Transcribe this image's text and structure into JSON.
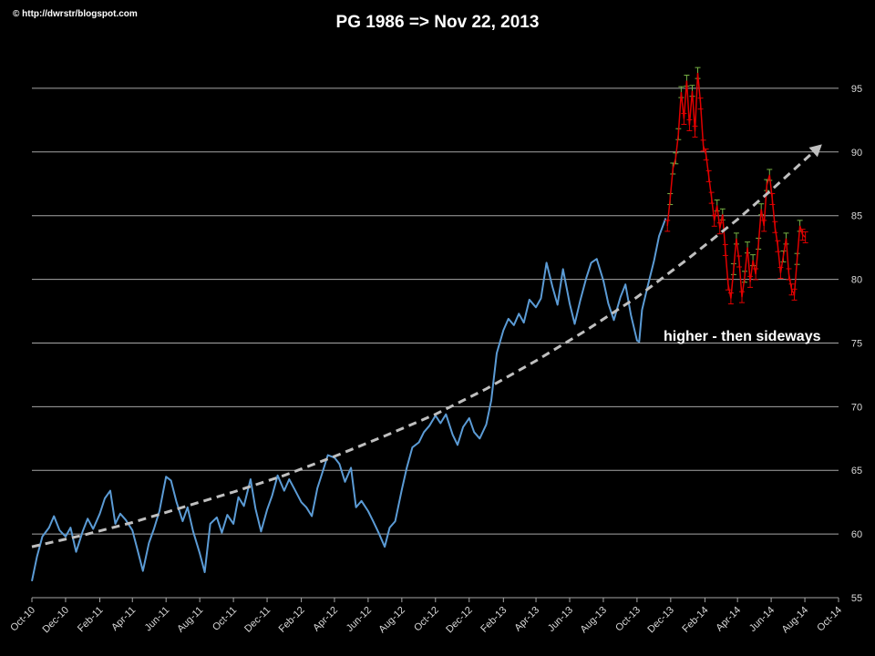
{
  "watermark": "© http://dwrstr/blogspot.com",
  "chart_data": {
    "type": "line",
    "title": "PG 1986 => Nov 22, 2013",
    "annotation": "higher - then sideways",
    "xlabel": "",
    "ylabel": "",
    "ylim": [
      55,
      98.5
    ],
    "yticks": [
      55,
      60,
      65,
      70,
      75,
      80,
      85,
      90,
      95
    ],
    "grid": "horizontal",
    "xlim": [
      "2010-10-01",
      "2014-10-01"
    ],
    "xtick_labels": [
      "Oct-10",
      "Dec-10",
      "Feb-11",
      "Apr-11",
      "Jun-11",
      "Aug-11",
      "Oct-11",
      "Dec-11",
      "Feb-12",
      "Apr-12",
      "Jun-12",
      "Aug-12",
      "Oct-12",
      "Dec-12",
      "Feb-13",
      "Apr-13",
      "Jun-13",
      "Aug-13",
      "Oct-13",
      "Dec-13",
      "Feb-14",
      "Apr-14",
      "Jun-14",
      "Aug-14",
      "Oct-14"
    ],
    "xtick_dates": [
      "2010-10-01",
      "2010-12-01",
      "2011-02-01",
      "2011-04-01",
      "2011-06-01",
      "2011-08-01",
      "2011-10-01",
      "2011-12-01",
      "2012-02-01",
      "2012-04-01",
      "2012-06-01",
      "2012-08-01",
      "2012-10-01",
      "2012-12-01",
      "2013-02-01",
      "2013-04-01",
      "2013-06-01",
      "2013-08-01",
      "2013-10-01",
      "2013-12-01",
      "2014-02-01",
      "2014-04-01",
      "2014-06-01",
      "2014-08-01",
      "2014-10-01"
    ],
    "colors": {
      "price": "#5b9bd5",
      "projection_up": "#77b244",
      "projection_down": "#e00000",
      "trend": "#bfbfbf",
      "grid": "#a6a6a6"
    },
    "series": [
      {
        "style": "line",
        "points": [
          [
            "2010-10-01",
            56.3
          ],
          [
            "2010-10-10",
            58.2
          ],
          [
            "2010-10-20",
            59.8
          ],
          [
            "2010-11-01",
            60.5
          ],
          [
            "2010-11-10",
            61.4
          ],
          [
            "2010-11-20",
            60.3
          ],
          [
            "2010-12-01",
            59.8
          ],
          [
            "2010-12-10",
            60.5
          ],
          [
            "2010-12-20",
            58.6
          ],
          [
            "2011-01-01",
            60.2
          ],
          [
            "2011-01-10",
            61.2
          ],
          [
            "2011-01-20",
            60.4
          ],
          [
            "2011-02-01",
            61.6
          ],
          [
            "2011-02-10",
            62.8
          ],
          [
            "2011-02-20",
            63.4
          ],
          [
            "2011-03-01",
            60.8
          ],
          [
            "2011-03-10",
            61.6
          ],
          [
            "2011-03-20",
            61.1
          ],
          [
            "2011-04-01",
            60.3
          ],
          [
            "2011-04-10",
            58.8
          ],
          [
            "2011-04-20",
            57.1
          ],
          [
            "2011-05-01",
            59.3
          ],
          [
            "2011-05-10",
            60.4
          ],
          [
            "2011-05-20",
            61.8
          ],
          [
            "2011-06-01",
            64.5
          ],
          [
            "2011-06-10",
            64.2
          ],
          [
            "2011-06-20",
            62.5
          ],
          [
            "2011-07-01",
            61.0
          ],
          [
            "2011-07-10",
            62.1
          ],
          [
            "2011-07-20",
            60.2
          ],
          [
            "2011-08-01",
            58.5
          ],
          [
            "2011-08-10",
            57.0
          ],
          [
            "2011-08-20",
            60.8
          ],
          [
            "2011-09-01",
            61.3
          ],
          [
            "2011-09-10",
            60.1
          ],
          [
            "2011-09-20",
            61.5
          ],
          [
            "2011-10-01",
            60.8
          ],
          [
            "2011-10-10",
            62.9
          ],
          [
            "2011-10-20",
            62.2
          ],
          [
            "2011-11-01",
            64.3
          ],
          [
            "2011-11-10",
            62.0
          ],
          [
            "2011-11-20",
            60.2
          ],
          [
            "2011-12-01",
            61.9
          ],
          [
            "2011-12-10",
            63.0
          ],
          [
            "2011-12-20",
            64.6
          ],
          [
            "2012-01-01",
            63.4
          ],
          [
            "2012-01-10",
            64.3
          ],
          [
            "2012-01-20",
            63.5
          ],
          [
            "2012-02-01",
            62.5
          ],
          [
            "2012-02-10",
            62.1
          ],
          [
            "2012-02-20",
            61.4
          ],
          [
            "2012-03-01",
            63.6
          ],
          [
            "2012-03-10",
            64.8
          ],
          [
            "2012-03-20",
            66.2
          ],
          [
            "2012-04-01",
            66.0
          ],
          [
            "2012-04-10",
            65.5
          ],
          [
            "2012-04-20",
            64.1
          ],
          [
            "2012-05-01",
            65.2
          ],
          [
            "2012-05-10",
            62.1
          ],
          [
            "2012-05-20",
            62.6
          ],
          [
            "2012-06-01",
            61.8
          ],
          [
            "2012-06-10",
            61.0
          ],
          [
            "2012-06-20",
            60.1
          ],
          [
            "2012-07-01",
            59.0
          ],
          [
            "2012-07-10",
            60.5
          ],
          [
            "2012-07-20",
            61.0
          ],
          [
            "2012-08-01",
            63.5
          ],
          [
            "2012-08-10",
            65.2
          ],
          [
            "2012-08-20",
            66.8
          ],
          [
            "2012-09-01",
            67.2
          ],
          [
            "2012-09-10",
            68.0
          ],
          [
            "2012-09-20",
            68.5
          ],
          [
            "2012-10-01",
            69.3
          ],
          [
            "2012-10-10",
            68.7
          ],
          [
            "2012-10-20",
            69.4
          ],
          [
            "2012-11-01",
            67.8
          ],
          [
            "2012-11-10",
            67.0
          ],
          [
            "2012-11-20",
            68.4
          ],
          [
            "2012-12-01",
            69.1
          ],
          [
            "2012-12-10",
            68.0
          ],
          [
            "2012-12-20",
            67.5
          ],
          [
            "2013-01-01",
            68.6
          ],
          [
            "2013-01-10",
            70.5
          ],
          [
            "2013-01-20",
            74.2
          ],
          [
            "2013-02-01",
            76.0
          ],
          [
            "2013-02-10",
            76.9
          ],
          [
            "2013-02-20",
            76.4
          ],
          [
            "2013-03-01",
            77.3
          ],
          [
            "2013-03-10",
            76.6
          ],
          [
            "2013-03-20",
            78.4
          ],
          [
            "2013-04-01",
            77.8
          ],
          [
            "2013-04-10",
            78.5
          ],
          [
            "2013-04-20",
            81.3
          ],
          [
            "2013-05-01",
            79.4
          ],
          [
            "2013-05-10",
            78.0
          ],
          [
            "2013-05-20",
            80.8
          ],
          [
            "2013-06-01",
            78.1
          ],
          [
            "2013-06-10",
            76.5
          ],
          [
            "2013-06-20",
            78.3
          ],
          [
            "2013-07-01",
            80.1
          ],
          [
            "2013-07-10",
            81.3
          ],
          [
            "2013-07-20",
            81.6
          ],
          [
            "2013-08-01",
            79.9
          ],
          [
            "2013-08-10",
            78.1
          ],
          [
            "2013-08-20",
            76.8
          ],
          [
            "2013-09-01",
            78.6
          ],
          [
            "2013-09-10",
            79.6
          ],
          [
            "2013-09-20",
            77.2
          ],
          [
            "2013-10-01",
            75.2
          ],
          [
            "2013-10-05",
            75.1
          ],
          [
            "2013-10-10",
            77.6
          ],
          [
            "2013-10-20",
            79.4
          ],
          [
            "2013-11-01",
            81.5
          ],
          [
            "2013-11-10",
            83.4
          ],
          [
            "2013-11-22",
            84.8
          ]
        ]
      },
      {
        "style": "error-bars",
        "points": [
          [
            "2013-11-25",
            84.2
          ],
          [
            "2013-11-30",
            86.3
          ],
          [
            "2013-12-05",
            88.7
          ],
          [
            "2013-12-10",
            89.5
          ],
          [
            "2013-12-15",
            91.4
          ],
          [
            "2013-12-20",
            94.7
          ],
          [
            "2013-12-25",
            92.6
          ],
          [
            "2013-12-30",
            95.6
          ],
          [
            "2014-01-04",
            92.1
          ],
          [
            "2014-01-09",
            94.8
          ],
          [
            "2014-01-14",
            91.6
          ],
          [
            "2014-01-19",
            96.2
          ],
          [
            "2014-01-24",
            93.8
          ],
          [
            "2014-01-29",
            90.5
          ],
          [
            "2014-02-03",
            89.8
          ],
          [
            "2014-02-08",
            88.1
          ],
          [
            "2014-02-13",
            86.4
          ],
          [
            "2014-02-18",
            84.6
          ],
          [
            "2014-02-23",
            85.8
          ],
          [
            "2014-02-28",
            84.0
          ],
          [
            "2014-03-05",
            85.1
          ],
          [
            "2014-03-10",
            82.3
          ],
          [
            "2014-03-15",
            79.6
          ],
          [
            "2014-03-20",
            78.5
          ],
          [
            "2014-03-25",
            80.8
          ],
          [
            "2014-03-30",
            83.2
          ],
          [
            "2014-04-04",
            81.4
          ],
          [
            "2014-04-09",
            78.6
          ],
          [
            "2014-04-14",
            80.2
          ],
          [
            "2014-04-19",
            82.5
          ],
          [
            "2014-04-24",
            79.8
          ],
          [
            "2014-04-29",
            81.5
          ],
          [
            "2014-05-04",
            80.4
          ],
          [
            "2014-05-09",
            82.8
          ],
          [
            "2014-05-14",
            85.5
          ],
          [
            "2014-05-19",
            84.2
          ],
          [
            "2014-05-24",
            87.4
          ],
          [
            "2014-05-29",
            88.2
          ],
          [
            "2014-06-03",
            86.3
          ],
          [
            "2014-06-08",
            84.1
          ],
          [
            "2014-06-13",
            82.6
          ],
          [
            "2014-06-18",
            80.5
          ],
          [
            "2014-06-23",
            81.8
          ],
          [
            "2014-06-28",
            83.2
          ],
          [
            "2014-07-03",
            80.4
          ],
          [
            "2014-07-08",
            79.2
          ],
          [
            "2014-07-13",
            78.8
          ],
          [
            "2014-07-18",
            81.6
          ],
          [
            "2014-07-23",
            84.2
          ],
          [
            "2014-07-28",
            83.5
          ],
          [
            "2014-08-02",
            83.3
          ]
        ]
      },
      {
        "style": "dashed-arrow",
        "points": [
          [
            "2010-10-01",
            59.0
          ],
          [
            "2011-01-01",
            59.9
          ],
          [
            "2011-04-01",
            60.9
          ],
          [
            "2011-07-01",
            62.1
          ],
          [
            "2011-10-01",
            63.3
          ],
          [
            "2012-01-01",
            64.6
          ],
          [
            "2012-04-01",
            66.1
          ],
          [
            "2012-07-01",
            67.7
          ],
          [
            "2012-10-01",
            69.4
          ],
          [
            "2013-01-01",
            71.4
          ],
          [
            "2013-04-01",
            73.6
          ],
          [
            "2013-07-01",
            76.0
          ],
          [
            "2013-10-01",
            78.6
          ],
          [
            "2014-01-01",
            81.6
          ],
          [
            "2014-04-01",
            84.7
          ],
          [
            "2014-06-01",
            87.0
          ],
          [
            "2014-09-01",
            90.6
          ]
        ]
      }
    ]
  }
}
